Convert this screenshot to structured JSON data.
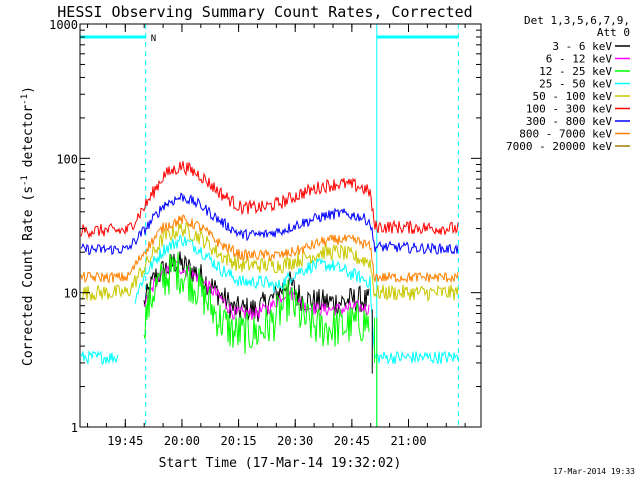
{
  "chart_data": {
    "type": "line",
    "title": "HESSI Observing Summary Count Rates, Corrected",
    "xlabel": "Start Time (17-Mar-14 19:32:02)",
    "ylabel_main": "Corrected Count Rate (s",
    "ylabel_sup1": "-1",
    "ylabel_mid": " detector",
    "ylabel_sup2": "-1",
    "ylabel_end": ")",
    "yscale": "log",
    "ylim": [
      1,
      1000
    ],
    "xlim": [
      19.55,
      21.32
    ],
    "x_ticks": [
      {
        "x": 19.75,
        "label": "19:45"
      },
      {
        "x": 20.0,
        "label": "20:00"
      },
      {
        "x": 20.25,
        "label": "20:15"
      },
      {
        "x": 20.5,
        "label": "20:30"
      },
      {
        "x": 20.75,
        "label": "20:45"
      },
      {
        "x": 21.0,
        "label": "21:00"
      }
    ],
    "y_ticks": [
      {
        "y": 1,
        "label": "1"
      },
      {
        "y": 10,
        "label": "10"
      },
      {
        "y": 100,
        "label": "100"
      },
      {
        "y": 1000,
        "label": "1000"
      }
    ],
    "legend_header": [
      "Det 1,3,5,6,7,9,",
      "Att 0"
    ],
    "annotation_N": "N",
    "series": [
      {
        "name": "3 - 6 keV",
        "color": "#000000",
        "noise": 0.1,
        "x": [
          19.55,
          19.78,
          19.83,
          19.88,
          19.97,
          20.07,
          20.16,
          20.23,
          20.33,
          20.4,
          20.47,
          20.53,
          20.6,
          20.7,
          20.78,
          20.83,
          20.85
        ],
        "values": [
          null,
          null,
          8,
          13,
          17,
          14,
          10,
          7.5,
          7.5,
          9,
          12,
          9,
          8.5,
          8.5,
          9,
          8.5,
          null
        ]
      },
      {
        "name": "6 - 12 keV",
        "color": "#ff00ff",
        "noise": 0.05,
        "x": [
          19.55,
          19.78,
          19.83,
          19.88,
          19.97,
          20.07,
          20.16,
          20.23,
          20.33,
          20.4,
          20.47,
          20.53,
          20.6,
          20.7,
          20.78,
          20.83,
          20.85
        ],
        "values": [
          null,
          null,
          7.5,
          12,
          16,
          13,
          9.5,
          7,
          7,
          8,
          10.5,
          8,
          7.5,
          7.5,
          7.8,
          7.5,
          null
        ]
      },
      {
        "name": "12 - 25 keV",
        "color": "#00ff00",
        "noise": 0.16,
        "x": [
          19.55,
          19.78,
          19.83,
          19.88,
          19.97,
          20.07,
          20.16,
          20.23,
          20.33,
          20.4,
          20.47,
          20.53,
          20.6,
          20.7,
          20.78,
          20.83,
          20.85
        ],
        "values": [
          null,
          null,
          6,
          11,
          15,
          11,
          6.5,
          5,
          5,
          6,
          9,
          6.5,
          5.5,
          5.5,
          6,
          6,
          null
        ]
      },
      {
        "name": "25 - 50 keV",
        "color": "#00ffff",
        "noise": 0.05,
        "x": [
          19.55,
          19.72,
          19.74,
          19.79,
          19.84,
          19.92,
          20.0,
          20.08,
          20.17,
          20.26,
          20.36,
          20.42,
          20.5,
          20.58,
          20.66,
          20.74,
          20.83,
          20.85,
          21.22
        ],
        "values": [
          3.3,
          3.3,
          null,
          9,
          14,
          21,
          25,
          21,
          15,
          12,
          12,
          11,
          14,
          16,
          16,
          14,
          12,
          3.3,
          3.3
        ]
      },
      {
        "name": "50 - 100 keV",
        "color": "#c8c800",
        "noise": 0.06,
        "x": [
          19.55,
          19.76,
          19.84,
          19.92,
          20.0,
          20.08,
          20.17,
          20.26,
          20.36,
          20.44,
          20.53,
          20.62,
          20.7,
          20.78,
          20.83,
          20.85,
          21.22
        ],
        "values": [
          10,
          10,
          16,
          26,
          30,
          26,
          19,
          16,
          16,
          16,
          18,
          20,
          20,
          18,
          17,
          10,
          10
        ]
      },
      {
        "name": "100 - 300 keV",
        "color": "#ff0000",
        "noise": 0.05,
        "x": [
          19.55,
          19.76,
          19.84,
          19.92,
          20.0,
          20.08,
          20.17,
          20.26,
          20.36,
          20.44,
          20.53,
          20.62,
          20.7,
          20.78,
          20.83,
          20.85,
          21.22
        ],
        "values": [
          29,
          29,
          45,
          75,
          88,
          75,
          55,
          43,
          43,
          47,
          55,
          62,
          65,
          62,
          56,
          31,
          30
        ]
      },
      {
        "name": "300 - 800 keV",
        "color": "#0000ff",
        "noise": 0.04,
        "x": [
          19.55,
          19.76,
          19.84,
          19.92,
          20.0,
          20.08,
          20.17,
          20.26,
          20.36,
          20.44,
          20.53,
          20.62,
          20.7,
          20.78,
          20.83,
          20.85,
          21.22
        ],
        "values": [
          21,
          21,
          30,
          45,
          52,
          45,
          34,
          27,
          27,
          29,
          33,
          37,
          39,
          37,
          34,
          22,
          21
        ]
      },
      {
        "name": "800 - 7000 keV",
        "color": "#ff8000",
        "noise": 0.04,
        "x": [
          19.55,
          19.76,
          19.84,
          19.92,
          20.0,
          20.08,
          20.17,
          20.26,
          20.36,
          20.44,
          20.53,
          20.62,
          20.7,
          20.78,
          20.83,
          20.85,
          21.22
        ],
        "values": [
          13,
          13,
          21,
          31,
          35,
          31,
          23,
          19,
          19,
          19,
          21,
          24,
          25,
          24,
          22,
          13,
          13
        ]
      },
      {
        "name": "7000 - 20000 keV",
        "color": "#a08000",
        "noise": 0.0,
        "x": [
          19.55,
          21.32
        ],
        "values": [
          null,
          null
        ]
      }
    ],
    "cyan_bars": [
      {
        "x_start": 19.55,
        "x_end": 19.84,
        "y": 800
      },
      {
        "x_start": 20.86,
        "x_end": 21.22,
        "y": 800
      }
    ],
    "vlines_solid": [
      19.55,
      20.86
    ],
    "vlines_dashed": [
      19.84,
      21.22
    ]
  },
  "footer_date": "17-Mar-2014 19:33",
  "colors": {
    "frame": "#000000",
    "marker": "#00ffff"
  }
}
